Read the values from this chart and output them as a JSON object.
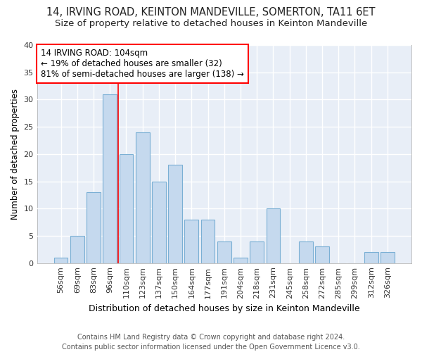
{
  "title": "14, IRVING ROAD, KEINTON MANDEVILLE, SOMERTON, TA11 6ET",
  "subtitle": "Size of property relative to detached houses in Keinton Mandeville",
  "xlabel": "Distribution of detached houses by size in Keinton Mandeville",
  "ylabel": "Number of detached properties",
  "footer_line1": "Contains HM Land Registry data © Crown copyright and database right 2024.",
  "footer_line2": "Contains public sector information licensed under the Open Government Licence v3.0.",
  "categories": [
    "56sqm",
    "69sqm",
    "83sqm",
    "96sqm",
    "110sqm",
    "123sqm",
    "137sqm",
    "150sqm",
    "164sqm",
    "177sqm",
    "191sqm",
    "204sqm",
    "218sqm",
    "231sqm",
    "245sqm",
    "258sqm",
    "272sqm",
    "285sqm",
    "299sqm",
    "312sqm",
    "326sqm"
  ],
  "values": [
    1,
    5,
    13,
    31,
    20,
    24,
    15,
    18,
    8,
    8,
    4,
    1,
    4,
    10,
    0,
    4,
    3,
    0,
    0,
    2,
    2
  ],
  "bar_color": "#c5d9ee",
  "bar_edge_color": "#7aafd4",
  "annotation_box_text_line1": "14 IRVING ROAD: 104sqm",
  "annotation_box_text_line2": "← 19% of detached houses are smaller (32)",
  "annotation_box_text_line3": "81% of semi-detached houses are larger (138) →",
  "annotation_box_color": "red",
  "annotation_box_fill": "white",
  "vline_x_index": 3.5,
  "vline_color": "red",
  "ylim": [
    0,
    40
  ],
  "yticks": [
    0,
    5,
    10,
    15,
    20,
    25,
    30,
    35,
    40
  ],
  "figure_bg_color": "#ffffff",
  "plot_bg_color": "#e8eef7",
  "grid_color": "#ffffff",
  "title_fontsize": 10.5,
  "subtitle_fontsize": 9.5,
  "xlabel_fontsize": 9,
  "ylabel_fontsize": 8.5,
  "tick_fontsize": 8,
  "annotation_fontsize": 8.5,
  "footer_fontsize": 7
}
